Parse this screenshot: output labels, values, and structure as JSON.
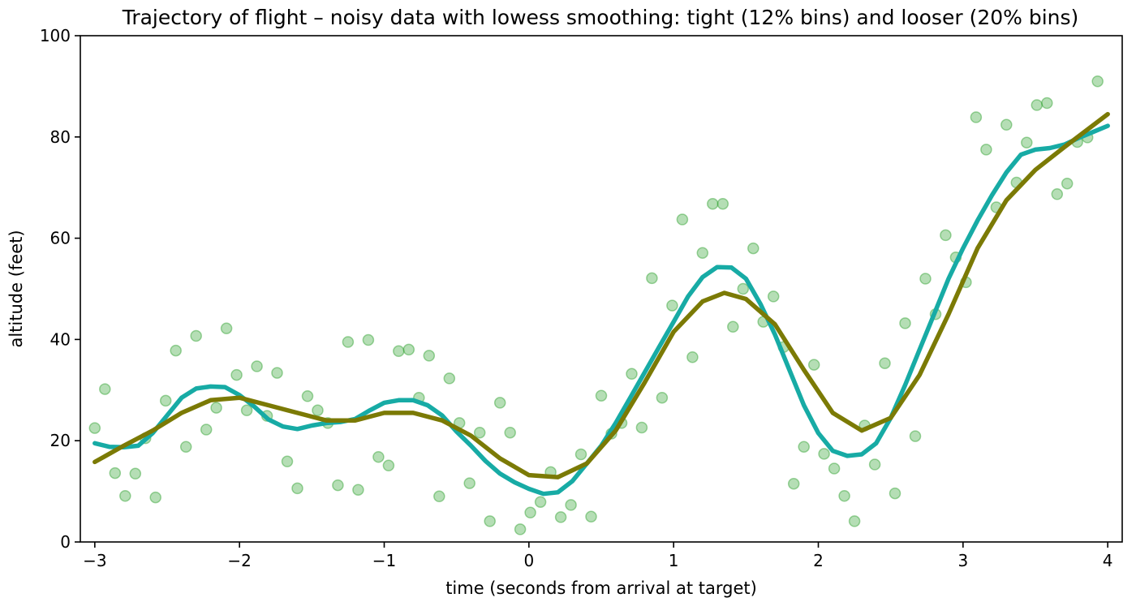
{
  "chart_data": {
    "type": "scatter",
    "title": "Trajectory of flight  –  noisy data with lowess smoothing: tight (12% bins) and looser (20% bins)",
    "xlabel": "time (seconds from arrival at target)",
    "ylabel": "altitude (feet)",
    "xlim": [
      -3.1,
      4.1
    ],
    "ylim": [
      0,
      100
    ],
    "x_ticks": [
      -3,
      -2,
      -1,
      0,
      1,
      2,
      3,
      4
    ],
    "x_tick_labels": [
      "−3",
      "−2",
      "−1",
      "0",
      "1",
      "2",
      "3",
      "4"
    ],
    "y_ticks": [
      0,
      20,
      40,
      60,
      80,
      100
    ],
    "y_tick_labels": [
      "0",
      "20",
      "40",
      "60",
      "80",
      "100"
    ],
    "grid": false,
    "series": [
      {
        "kind": "scatter",
        "color": "#2ca02c",
        "points": [
          [
            -3.0,
            22.5
          ],
          [
            -2.93,
            30.2
          ],
          [
            -2.86,
            13.6
          ],
          [
            -2.79,
            9.1
          ],
          [
            -2.72,
            13.5
          ],
          [
            -2.65,
            20.5
          ],
          [
            -2.58,
            8.8
          ],
          [
            -2.51,
            27.9
          ],
          [
            -2.44,
            37.8
          ],
          [
            -2.37,
            18.8
          ],
          [
            -2.3,
            40.7
          ],
          [
            -2.23,
            22.2
          ],
          [
            -2.16,
            26.5
          ],
          [
            -2.09,
            42.2
          ],
          [
            -2.02,
            33.0
          ],
          [
            -1.95,
            26.0
          ],
          [
            -1.88,
            34.7
          ],
          [
            -1.81,
            24.9
          ],
          [
            -1.74,
            33.4
          ],
          [
            -1.67,
            15.9
          ],
          [
            -1.6,
            10.6
          ],
          [
            -1.53,
            28.8
          ],
          [
            -1.46,
            26.0
          ],
          [
            -1.39,
            23.5
          ],
          [
            -1.32,
            11.2
          ],
          [
            -1.25,
            39.5
          ],
          [
            -1.18,
            10.3
          ],
          [
            -1.11,
            39.9
          ],
          [
            -1.04,
            16.8
          ],
          [
            -0.97,
            15.1
          ],
          [
            -0.9,
            37.7
          ],
          [
            -0.83,
            38.0
          ],
          [
            -0.76,
            28.5
          ],
          [
            -0.69,
            36.8
          ],
          [
            -0.62,
            9.0
          ],
          [
            -0.55,
            32.3
          ],
          [
            -0.48,
            23.5
          ],
          [
            -0.41,
            11.6
          ],
          [
            -0.34,
            21.6
          ],
          [
            -0.27,
            4.1
          ],
          [
            -0.2,
            27.5
          ],
          [
            -0.13,
            21.6
          ],
          [
            -0.06,
            2.5
          ],
          [
            0.01,
            5.8
          ],
          [
            0.08,
            7.9
          ],
          [
            0.15,
            13.8
          ],
          [
            0.22,
            4.9
          ],
          [
            0.29,
            7.3
          ],
          [
            0.36,
            17.3
          ],
          [
            0.43,
            5.0
          ],
          [
            0.5,
            28.9
          ],
          [
            0.57,
            21.4
          ],
          [
            0.64,
            23.5
          ],
          [
            0.71,
            33.2
          ],
          [
            0.78,
            22.6
          ],
          [
            0.85,
            52.1
          ],
          [
            0.92,
            28.5
          ],
          [
            0.99,
            46.7
          ],
          [
            1.06,
            63.7
          ],
          [
            1.13,
            36.5
          ],
          [
            1.2,
            57.1
          ],
          [
            1.27,
            66.8
          ],
          [
            1.34,
            66.8
          ],
          [
            1.41,
            42.5
          ],
          [
            1.48,
            50.0
          ],
          [
            1.55,
            58.0
          ],
          [
            1.62,
            43.5
          ],
          [
            1.69,
            48.5
          ],
          [
            1.76,
            38.5
          ],
          [
            1.83,
            11.5
          ],
          [
            1.9,
            18.8
          ],
          [
            1.97,
            35.0
          ],
          [
            2.04,
            17.4
          ],
          [
            2.11,
            14.5
          ],
          [
            2.18,
            9.1
          ],
          [
            2.25,
            4.1
          ],
          [
            2.32,
            23.0
          ],
          [
            2.39,
            15.3
          ],
          [
            2.46,
            35.3
          ],
          [
            2.53,
            9.6
          ],
          [
            2.6,
            43.2
          ],
          [
            2.67,
            20.9
          ],
          [
            2.74,
            52.0
          ],
          [
            2.81,
            45.0
          ],
          [
            2.88,
            60.6
          ],
          [
            2.95,
            56.2
          ],
          [
            3.02,
            51.3
          ],
          [
            3.09,
            83.9
          ],
          [
            3.16,
            77.5
          ],
          [
            3.23,
            66.1
          ],
          [
            3.3,
            82.4
          ],
          [
            3.37,
            71.0
          ],
          [
            3.44,
            78.9
          ],
          [
            3.51,
            86.3
          ],
          [
            3.58,
            86.7
          ],
          [
            3.65,
            68.7
          ],
          [
            3.72,
            70.8
          ],
          [
            3.79,
            79.0
          ],
          [
            3.86,
            79.9
          ],
          [
            3.93,
            91.0
          ]
        ]
      },
      {
        "kind": "line",
        "color": "#17aba5",
        "points": [
          [
            -3.0,
            19.5
          ],
          [
            -2.9,
            18.8
          ],
          [
            -2.8,
            18.7
          ],
          [
            -2.7,
            19.0
          ],
          [
            -2.6,
            21.5
          ],
          [
            -2.5,
            25.0
          ],
          [
            -2.4,
            28.5
          ],
          [
            -2.3,
            30.3
          ],
          [
            -2.2,
            30.7
          ],
          [
            -2.1,
            30.6
          ],
          [
            -2.0,
            29.0
          ],
          [
            -1.9,
            26.8
          ],
          [
            -1.8,
            24.2
          ],
          [
            -1.7,
            22.8
          ],
          [
            -1.6,
            22.3
          ],
          [
            -1.5,
            23.0
          ],
          [
            -1.4,
            23.5
          ],
          [
            -1.3,
            23.7
          ],
          [
            -1.2,
            24.3
          ],
          [
            -1.1,
            26.0
          ],
          [
            -1.0,
            27.5
          ],
          [
            -0.9,
            28.0
          ],
          [
            -0.8,
            28.0
          ],
          [
            -0.7,
            27.0
          ],
          [
            -0.6,
            25.0
          ],
          [
            -0.5,
            21.8
          ],
          [
            -0.4,
            19.0
          ],
          [
            -0.3,
            16.0
          ],
          [
            -0.2,
            13.5
          ],
          [
            -0.1,
            11.8
          ],
          [
            0.0,
            10.5
          ],
          [
            0.1,
            9.5
          ],
          [
            0.2,
            9.8
          ],
          [
            0.3,
            12.0
          ],
          [
            0.4,
            15.5
          ],
          [
            0.5,
            19.0
          ],
          [
            0.6,
            23.5
          ],
          [
            0.7,
            28.5
          ],
          [
            0.8,
            33.5
          ],
          [
            0.9,
            38.5
          ],
          [
            1.0,
            43.5
          ],
          [
            1.1,
            48.5
          ],
          [
            1.2,
            52.3
          ],
          [
            1.3,
            54.3
          ],
          [
            1.4,
            54.2
          ],
          [
            1.5,
            52.0
          ],
          [
            1.6,
            47.0
          ],
          [
            1.7,
            41.0
          ],
          [
            1.8,
            34.0
          ],
          [
            1.9,
            27.0
          ],
          [
            2.0,
            21.5
          ],
          [
            2.1,
            18.0
          ],
          [
            2.2,
            17.0
          ],
          [
            2.3,
            17.3
          ],
          [
            2.4,
            19.5
          ],
          [
            2.5,
            24.5
          ],
          [
            2.6,
            31.0
          ],
          [
            2.7,
            38.0
          ],
          [
            2.8,
            45.0
          ],
          [
            2.9,
            52.0
          ],
          [
            3.0,
            58.0
          ],
          [
            3.1,
            63.5
          ],
          [
            3.2,
            68.5
          ],
          [
            3.3,
            73.0
          ],
          [
            3.4,
            76.5
          ],
          [
            3.5,
            77.5
          ],
          [
            3.6,
            77.8
          ],
          [
            3.7,
            78.5
          ],
          [
            3.8,
            79.8
          ],
          [
            3.9,
            81.0
          ],
          [
            4.0,
            82.2
          ]
        ]
      },
      {
        "kind": "line",
        "color": "#7b7a05",
        "points": [
          [
            -3.0,
            15.8
          ],
          [
            -2.8,
            19.0
          ],
          [
            -2.6,
            22.0
          ],
          [
            -2.4,
            25.5
          ],
          [
            -2.2,
            28.0
          ],
          [
            -2.0,
            28.5
          ],
          [
            -1.8,
            27.0
          ],
          [
            -1.6,
            25.5
          ],
          [
            -1.4,
            24.0
          ],
          [
            -1.2,
            24.0
          ],
          [
            -1.0,
            25.5
          ],
          [
            -0.8,
            25.5
          ],
          [
            -0.6,
            24.0
          ],
          [
            -0.4,
            21.0
          ],
          [
            -0.2,
            16.5
          ],
          [
            0.0,
            13.2
          ],
          [
            0.2,
            12.8
          ],
          [
            0.4,
            15.5
          ],
          [
            0.6,
            22.0
          ],
          [
            0.8,
            31.5
          ],
          [
            1.0,
            41.5
          ],
          [
            1.2,
            47.5
          ],
          [
            1.35,
            49.2
          ],
          [
            1.5,
            48.0
          ],
          [
            1.7,
            43.0
          ],
          [
            1.9,
            34.0
          ],
          [
            2.1,
            25.5
          ],
          [
            2.3,
            22.0
          ],
          [
            2.5,
            24.5
          ],
          [
            2.7,
            33.0
          ],
          [
            2.9,
            45.0
          ],
          [
            3.1,
            58.0
          ],
          [
            3.3,
            67.5
          ],
          [
            3.5,
            73.5
          ],
          [
            3.7,
            78.0
          ],
          [
            4.0,
            84.5
          ]
        ]
      }
    ]
  }
}
